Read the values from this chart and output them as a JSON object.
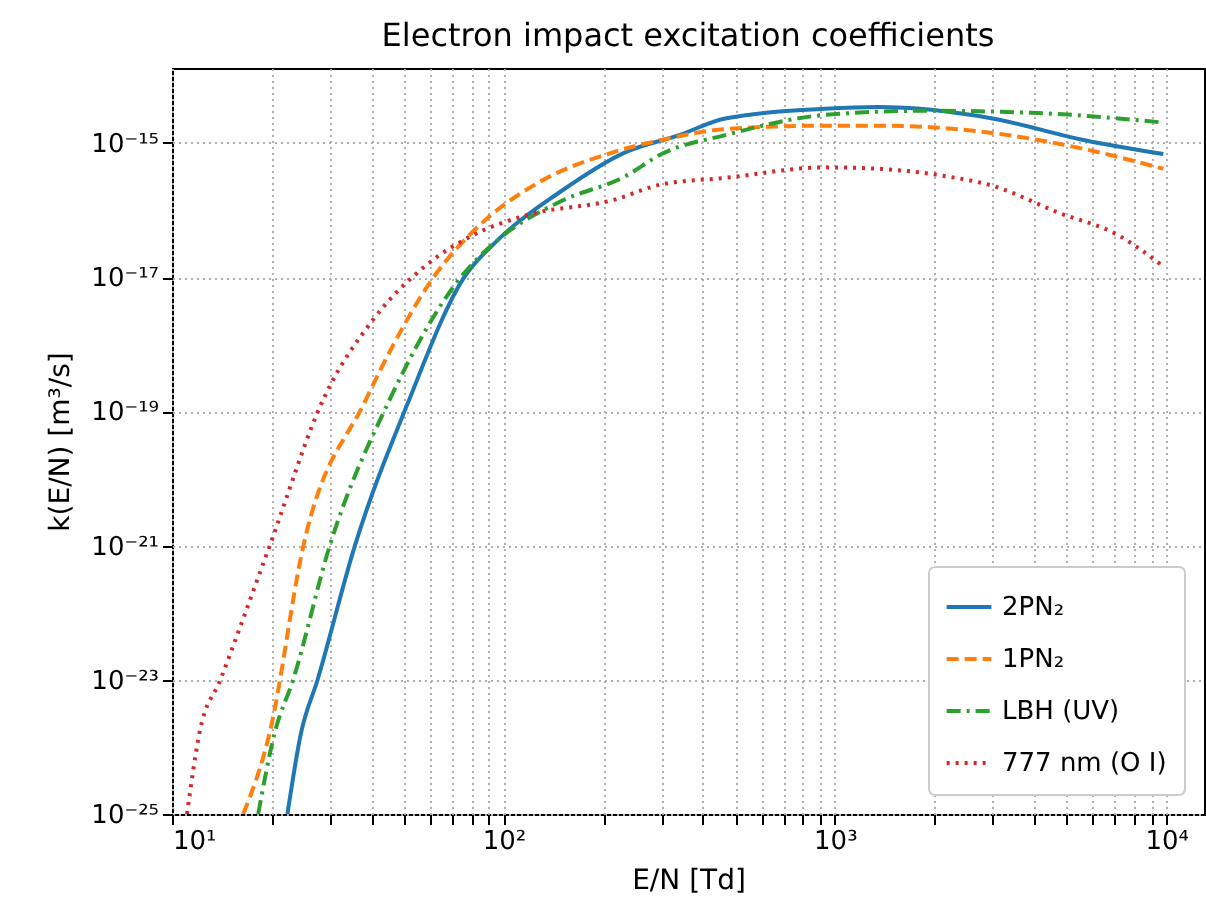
{
  "chart_data": {
    "type": "line",
    "title": "Electron impact excitation coefficients",
    "xlabel": "E/N [Td]",
    "ylabel": "k(E/N) [m³/s]",
    "log": "xy",
    "grid": true,
    "legend": "bottom right",
    "xlim": [
      10,
      13000
    ],
    "ylim": [
      1e-25,
      1.3e-14
    ],
    "xticks": [
      {
        "value": 10,
        "label": "10¹"
      },
      {
        "value": 20,
        "label": null
      },
      {
        "value": 30,
        "label": null
      },
      {
        "value": 40,
        "label": null
      },
      {
        "value": 50,
        "label": null
      },
      {
        "value": 60,
        "label": null
      },
      {
        "value": 70,
        "label": null
      },
      {
        "value": 80,
        "label": null
      },
      {
        "value": 90,
        "label": null
      },
      {
        "value": 100,
        "label": "10²"
      },
      {
        "value": 200,
        "label": null
      },
      {
        "value": 300,
        "label": null
      },
      {
        "value": 400,
        "label": null
      },
      {
        "value": 500,
        "label": null
      },
      {
        "value": 600,
        "label": null
      },
      {
        "value": 700,
        "label": null
      },
      {
        "value": 800,
        "label": null
      },
      {
        "value": 900,
        "label": null
      },
      {
        "value": 1000,
        "label": "10³"
      },
      {
        "value": 2000,
        "label": null
      },
      {
        "value": 3000,
        "label": null
      },
      {
        "value": 4000,
        "label": null
      },
      {
        "value": 5000,
        "label": null
      },
      {
        "value": 6000,
        "label": null
      },
      {
        "value": 7000,
        "label": null
      },
      {
        "value": 8000,
        "label": null
      },
      {
        "value": 9000,
        "label": null
      },
      {
        "value": 10000,
        "label": "10⁴"
      }
    ],
    "yticks": [
      {
        "value": 1e-25,
        "label": "10⁻²⁵"
      },
      {
        "value": 1e-23,
        "label": "10⁻²³"
      },
      {
        "value": 1e-21,
        "label": "10⁻²¹"
      },
      {
        "value": 1e-19,
        "label": "10⁻¹⁹"
      },
      {
        "value": 1e-17,
        "label": "10⁻¹⁷"
      },
      {
        "value": 1e-15,
        "label": "10⁻¹⁵"
      }
    ],
    "series": [
      {
        "name": "2PN₂",
        "color": "#1f77b4",
        "line_style": "solid",
        "x": [
          22.3,
          24.5,
          27.5,
          35.6,
          51.4,
          75.5,
          97,
          147,
          233,
          339,
          467,
          933,
          1350,
          2990,
          5630,
          9800
        ],
        "values": [
          1e-25,
          1.6e-24,
          1e-23,
          9.8e-22,
          1.3e-19,
          9.3e-18,
          3.7e-17,
          1.8e-16,
          7.2e-16,
          1.3e-15,
          2.3e-15,
          3.2e-15,
          3.4e-15,
          2.3e-15,
          1.1e-15,
          6.8e-16
        ]
      },
      {
        "name": "1PN₂",
        "color": "#ff7f0e",
        "line_style": "dashed",
        "x": [
          16.4,
          19.7,
          24.9,
          38.5,
          46.4,
          61,
          84.7,
          123,
          214,
          300,
          467,
          933,
          1350,
          2990,
          5630,
          9800
        ],
        "values": [
          1e-25,
          1.6e-24,
          9.8e-22,
          1.5e-19,
          9.5e-19,
          9.3e-18,
          5.9e-17,
          2.3e-16,
          7.2e-16,
          1.1e-15,
          1.6e-15,
          1.8e-15,
          1.8e-15,
          1.4e-15,
          8.1e-16,
          4.1e-16
        ]
      },
      {
        "name": "LBH (UV)",
        "color": "#2ca02c",
        "line_style": "dashdot",
        "x": [
          18.2,
          20.4,
          23.2,
          29.9,
          45.4,
          73.6,
          97,
          147,
          234,
          300,
          467,
          933,
          1870,
          3940,
          9800
        ],
        "values": [
          1e-25,
          1.6e-24,
          1e-23,
          9.8e-22,
          1.5e-19,
          9.3e-18,
          3.7e-17,
          1.3e-16,
          3.2e-16,
          6.8e-16,
          1.3e-15,
          2.6e-15,
          3e-15,
          2.8e-15,
          2e-15
        ]
      },
      {
        "name": "777 nm (O I)",
        "color": "#d62728",
        "line_style": "dotted",
        "x": [
          11.1,
          12.1,
          14,
          19.7,
          28.6,
          40.4,
          58.5,
          80.9,
          117,
          214,
          300,
          467,
          933,
          1350,
          2140,
          2980,
          4730,
          7160,
          9690
        ],
        "values": [
          1e-25,
          1.6e-24,
          1e-23,
          9.8e-22,
          1.5e-19,
          2.3e-18,
          1.5e-17,
          4.2e-17,
          8.3e-17,
          1.4e-16,
          2.4e-16,
          3e-16,
          4.3e-16,
          4.1e-16,
          3.2e-16,
          2.3e-16,
          9.1e-17,
          4.2e-17,
          1.5e-17
        ]
      }
    ]
  }
}
